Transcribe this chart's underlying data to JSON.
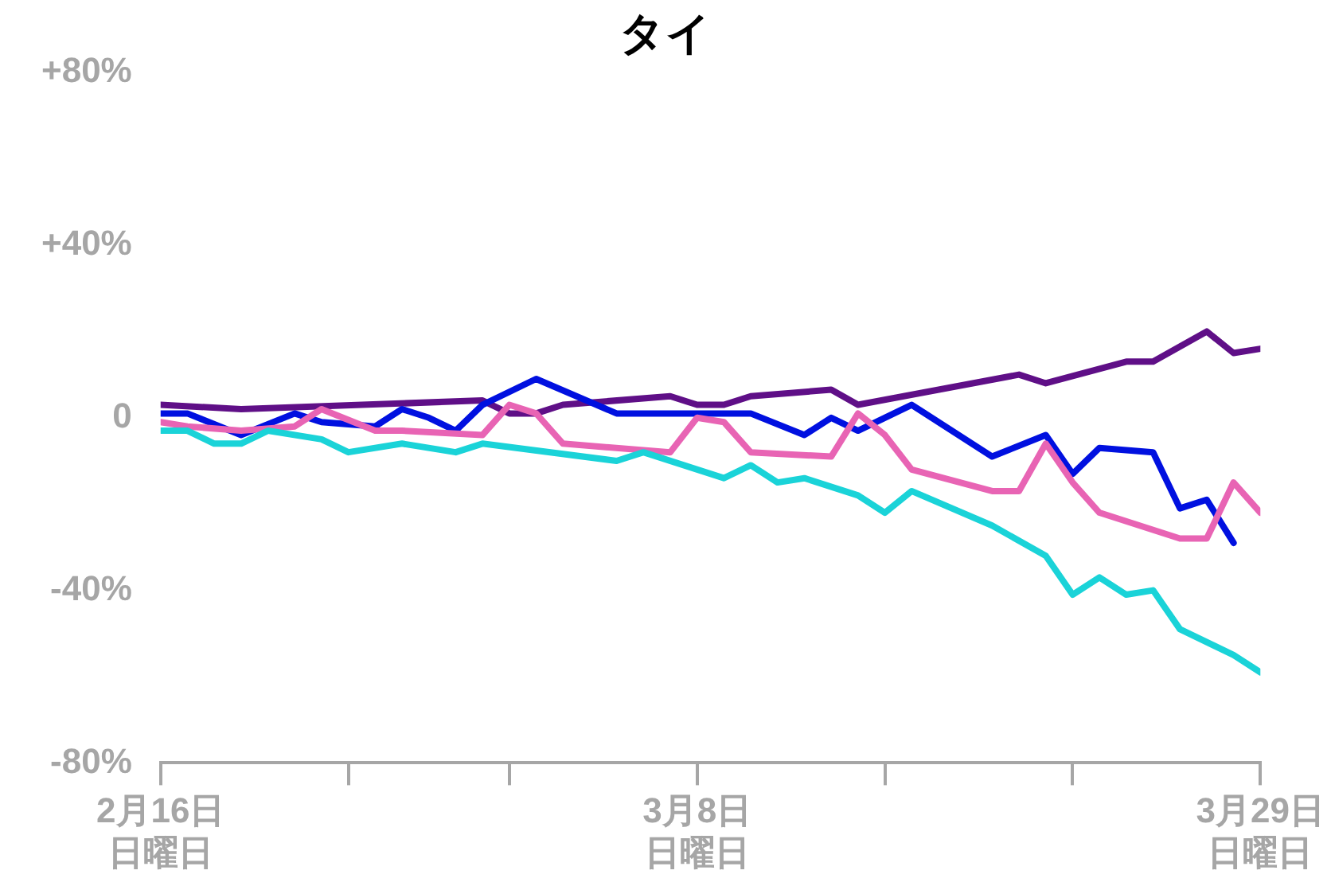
{
  "chart_data": {
    "type": "line",
    "title": "タイ",
    "xlim": [
      "--02-16",
      "--03-29"
    ],
    "xticks": [
      {
        "value": "--02-16",
        "label": "2月16日日曜日"
      },
      {
        "value": "--02-23",
        "label": null
      },
      {
        "value": "--03-01",
        "label": null
      },
      {
        "value": "--03-08",
        "label": "3月8日日曜日"
      },
      {
        "value": "--03-15",
        "label": null
      },
      {
        "value": "--03-22",
        "label": null
      },
      {
        "value": "--03-29",
        "label": "3月29日日曜日"
      }
    ],
    "ylim": [
      -80,
      80
    ],
    "yticks": [
      {
        "value": 80,
        "label": "+80%"
      },
      {
        "value": 40,
        "label": "+40%"
      },
      0,
      {
        "value": -40,
        "label": "-40%"
      },
      {
        "value": -80,
        "label": "-80%"
      }
    ],
    "grid": false,
    "legend": false,
    "marker": "none",
    "line_style": "solid",
    "series": [
      {
        "color": "#1ad3d8",
        "x": [
          "--02-16",
          "--02-17",
          "--02-18",
          "--02-19",
          "--02-20",
          "--02-22",
          "--02-23",
          "--02-25",
          "--02-27",
          "--02-28",
          "--03-05",
          "--03-06",
          "--03-09",
          "--03-10",
          "--03-11",
          "--03-12",
          "--03-14",
          "--03-15",
          "--03-16",
          "--03-19",
          "--03-21",
          "--03-22",
          "--03-23",
          "--03-24",
          "--03-25",
          "--03-26",
          "--03-28",
          "--03-29"
        ],
        "values": [
          -3,
          -3,
          -6,
          -6,
          -3,
          -5,
          -8,
          -6,
          -8,
          -6,
          -10,
          -8,
          -14,
          -11,
          -15,
          -14,
          -18,
          -22,
          -17,
          -25,
          -32,
          -41,
          -37,
          -41,
          -40,
          -49,
          -55,
          -59
        ]
      },
      {
        "color": "#e864b4",
        "x": [
          "--02-16",
          "--02-17",
          "--02-19",
          "--02-21",
          "--02-22",
          "--02-24",
          "--02-25",
          "--02-28",
          "--03-01",
          "--03-02",
          "--03-03",
          "--03-07",
          "--03-08",
          "--03-09",
          "--03-10",
          "--03-13",
          "--03-14",
          "--03-15",
          "--03-16",
          "--03-19",
          "--03-20",
          "--03-21",
          "--03-22",
          "--03-23",
          "--03-26",
          "--03-27",
          "--03-28",
          "--03-29"
        ],
        "values": [
          -1,
          -2,
          -3,
          -2,
          2,
          -3,
          -3,
          -4,
          3,
          1,
          -6,
          -8,
          0,
          -1,
          -8,
          -9,
          1,
          -4,
          -12,
          -17,
          -17,
          -6,
          -15,
          -22,
          -28,
          -28,
          -15,
          -22
        ]
      },
      {
        "color": "#0010e0",
        "x": [
          "--02-16",
          "--02-17",
          "--02-19",
          "--02-21",
          "--02-22",
          "--02-24",
          "--02-25",
          "--02-26",
          "--02-27",
          "--02-28",
          "--03-02",
          "--03-05",
          "--03-09",
          "--03-10",
          "--03-12",
          "--03-13",
          "--03-14",
          "--03-16",
          "--03-19",
          "--03-21",
          "--03-22",
          "--03-23",
          "--03-25",
          "--03-26",
          "--03-27",
          "--03-28"
        ],
        "values": [
          1,
          1,
          -4,
          1,
          -1,
          -2,
          2,
          0,
          -3,
          3,
          9,
          1,
          1,
          1,
          -4,
          0,
          -3,
          3,
          -9,
          -4,
          -13,
          -7,
          -8,
          -21,
          -19,
          -29
        ]
      },
      {
        "color": "#5f0f87",
        "x": [
          "--02-16",
          "--02-19",
          "--02-28",
          "--03-01",
          "--03-02",
          "--03-03",
          "--03-07",
          "--03-08",
          "--03-09",
          "--03-10",
          "--03-13",
          "--03-14",
          "--03-20",
          "--03-21",
          "--03-24",
          "--03-25",
          "--03-27",
          "--03-28",
          "--03-29"
        ],
        "values": [
          3,
          2,
          4,
          1,
          1,
          3,
          5,
          3,
          3,
          5,
          6.5,
          3,
          10,
          8,
          13,
          13,
          20,
          15,
          16
        ]
      }
    ]
  }
}
